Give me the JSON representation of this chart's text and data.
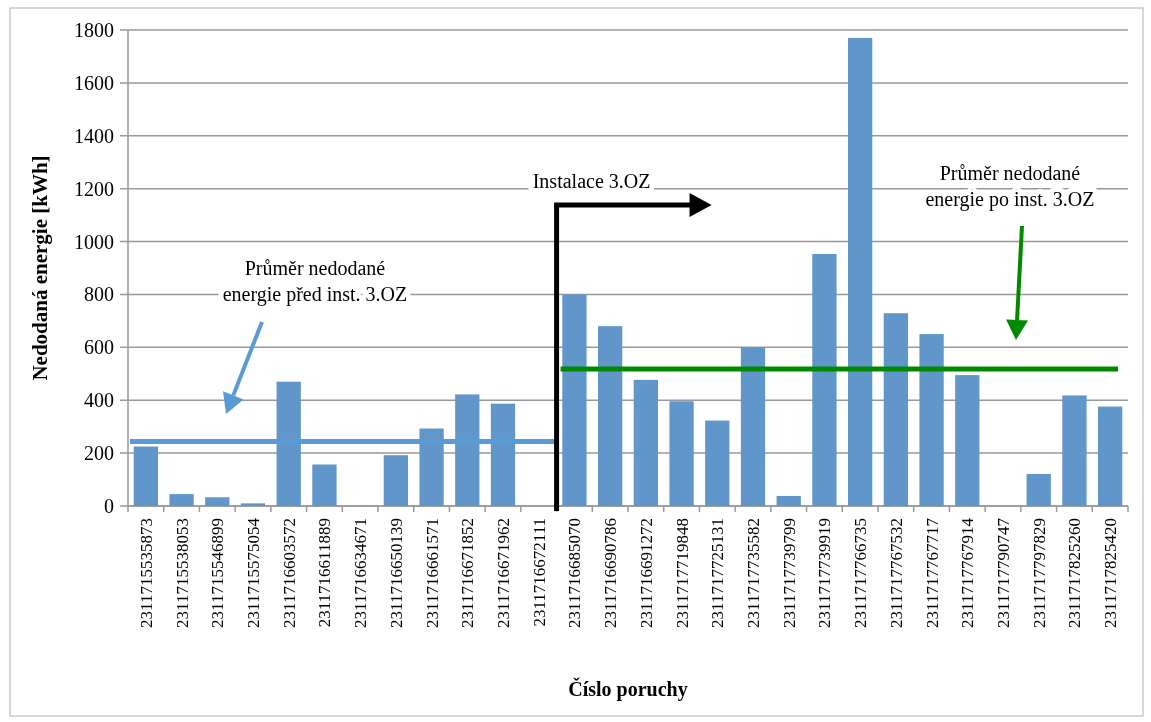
{
  "chart_data": {
    "type": "bar",
    "xlabel": "Číslo poruchy",
    "ylabel": "Nedodaná energie [kWh]",
    "categories": [
      "2311715535873",
      "2311715538053",
      "2311715546899",
      "2311715575054",
      "2311716603572",
      "2311716611889",
      "2311716634671",
      "2311716650139",
      "2311716661571",
      "2311716671852",
      "2311716671962",
      "2311716672111",
      "2311716685070",
      "2311716690786",
      "2311716691272",
      "2311717719848",
      "2311717725131",
      "2311717735582",
      "2311717739799",
      "2311717739919",
      "2311717766735",
      "2311717767532",
      "2311717767717",
      "2311717767914",
      "2311717790747",
      "2311717797829",
      "2311717825260",
      "2311717825420"
    ],
    "values": [
      225,
      45,
      33,
      10,
      470,
      157,
      0,
      192,
      293,
      422,
      387,
      0,
      800,
      680,
      477,
      396,
      323,
      600,
      38,
      953,
      1770,
      729,
      650,
      495,
      0,
      121,
      418,
      376
    ],
    "color": "#6096c9",
    "ylim": [
      0,
      1800
    ],
    "yticks": [
      0,
      200,
      400,
      600,
      800,
      1000,
      1200,
      1400,
      1600,
      1800
    ],
    "grid": "y",
    "annotations": [
      "Průměr nedodané energie před inst. 3.OZ",
      "Průměr nedodané energie po inst. 3.OZ"
    ],
    "ref_lines": [
      {
        "axis": "y",
        "value": 244,
        "color": "#5b9bd5"
      },
      {
        "axis": "y",
        "value": 518,
        "color": "#008a00"
      },
      {
        "axis": "x",
        "value": "2311716685070",
        "label": "Instalace 3.OZ",
        "color": "#000000"
      }
    ]
  }
}
